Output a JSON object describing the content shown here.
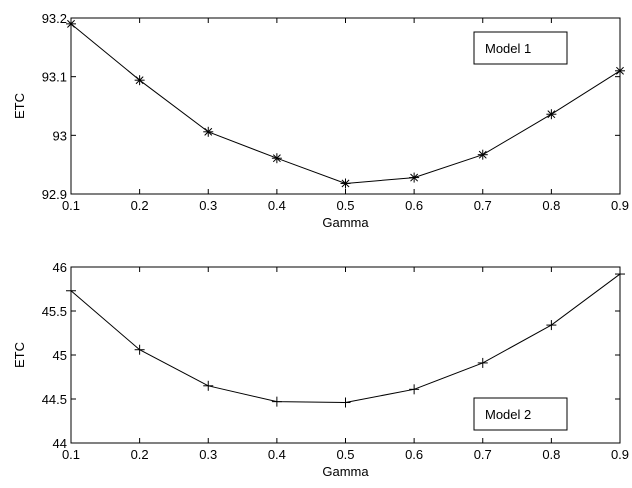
{
  "chart_data": [
    {
      "type": "line",
      "xlabel": "Gamma",
      "ylabel": "ETC",
      "xlim": [
        0.1,
        0.9
      ],
      "ylim": [
        92.9,
        93.2
      ],
      "xticks": [
        0.1,
        0.2,
        0.3,
        0.4,
        0.5,
        0.6,
        0.7,
        0.8,
        0.9
      ],
      "xtick_labels": [
        "0.1",
        "0.2",
        "0.3",
        "0.4",
        "0.5",
        "0.6",
        "0.7",
        "0.8",
        "0.9"
      ],
      "yticks": [
        92.9,
        93.0,
        93.1,
        93.2
      ],
      "ytick_labels": [
        "92.9",
        "93",
        "93.1",
        "93.2"
      ],
      "marker": "asterisk",
      "legend": "top-right",
      "grid": false,
      "series": [
        {
          "name": "Model 1",
          "x": [
            0.1,
            0.2,
            0.3,
            0.4,
            0.5,
            0.6,
            0.7,
            0.8,
            0.9
          ],
          "values": [
            93.19,
            93.094,
            93.006,
            92.961,
            92.918,
            92.928,
            92.967,
            93.036,
            93.11
          ]
        }
      ]
    },
    {
      "type": "line",
      "xlabel": "Gamma",
      "ylabel": "ETC",
      "xlim": [
        0.1,
        0.9
      ],
      "ylim": [
        44,
        46
      ],
      "xticks": [
        0.1,
        0.2,
        0.3,
        0.4,
        0.5,
        0.6,
        0.7,
        0.8,
        0.9
      ],
      "xtick_labels": [
        "0.1",
        "0.2",
        "0.3",
        "0.4",
        "0.5",
        "0.6",
        "0.7",
        "0.8",
        "0.9"
      ],
      "yticks": [
        44,
        44.5,
        45,
        45.5,
        46
      ],
      "ytick_labels": [
        "44",
        "44.5",
        "45",
        "45.5",
        "46"
      ],
      "marker": "plus",
      "legend": "bottom-right",
      "grid": false,
      "series": [
        {
          "name": "Model 2",
          "x": [
            0.1,
            0.2,
            0.3,
            0.4,
            0.5,
            0.6,
            0.7,
            0.8,
            0.9
          ],
          "values": [
            45.73,
            45.06,
            44.65,
            44.47,
            44.46,
            44.61,
            44.91,
            45.34,
            45.92
          ]
        }
      ]
    }
  ]
}
